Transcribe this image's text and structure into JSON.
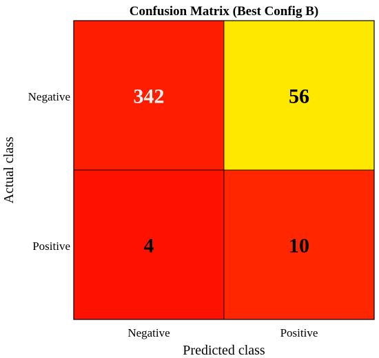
{
  "chart_data": {
    "type": "heatmap",
    "title": "Confusion Matrix (Best Config B)",
    "xlabel": "Predicted class",
    "ylabel": "Actual class",
    "x_categories": [
      "Negative",
      "Positive"
    ],
    "y_categories": [
      "Negative",
      "Positive"
    ],
    "values": [
      [
        342,
        56
      ],
      [
        4,
        10
      ]
    ],
    "cell_colors": [
      [
        "#ff1d00",
        "#ffe800"
      ],
      [
        "#ff1100",
        "#ff2600"
      ]
    ],
    "text_colors": [
      [
        "#f2f2f2",
        "#000000"
      ],
      [
        "#000000",
        "#000000"
      ]
    ],
    "colormap": "autumn",
    "colorbar": false
  }
}
